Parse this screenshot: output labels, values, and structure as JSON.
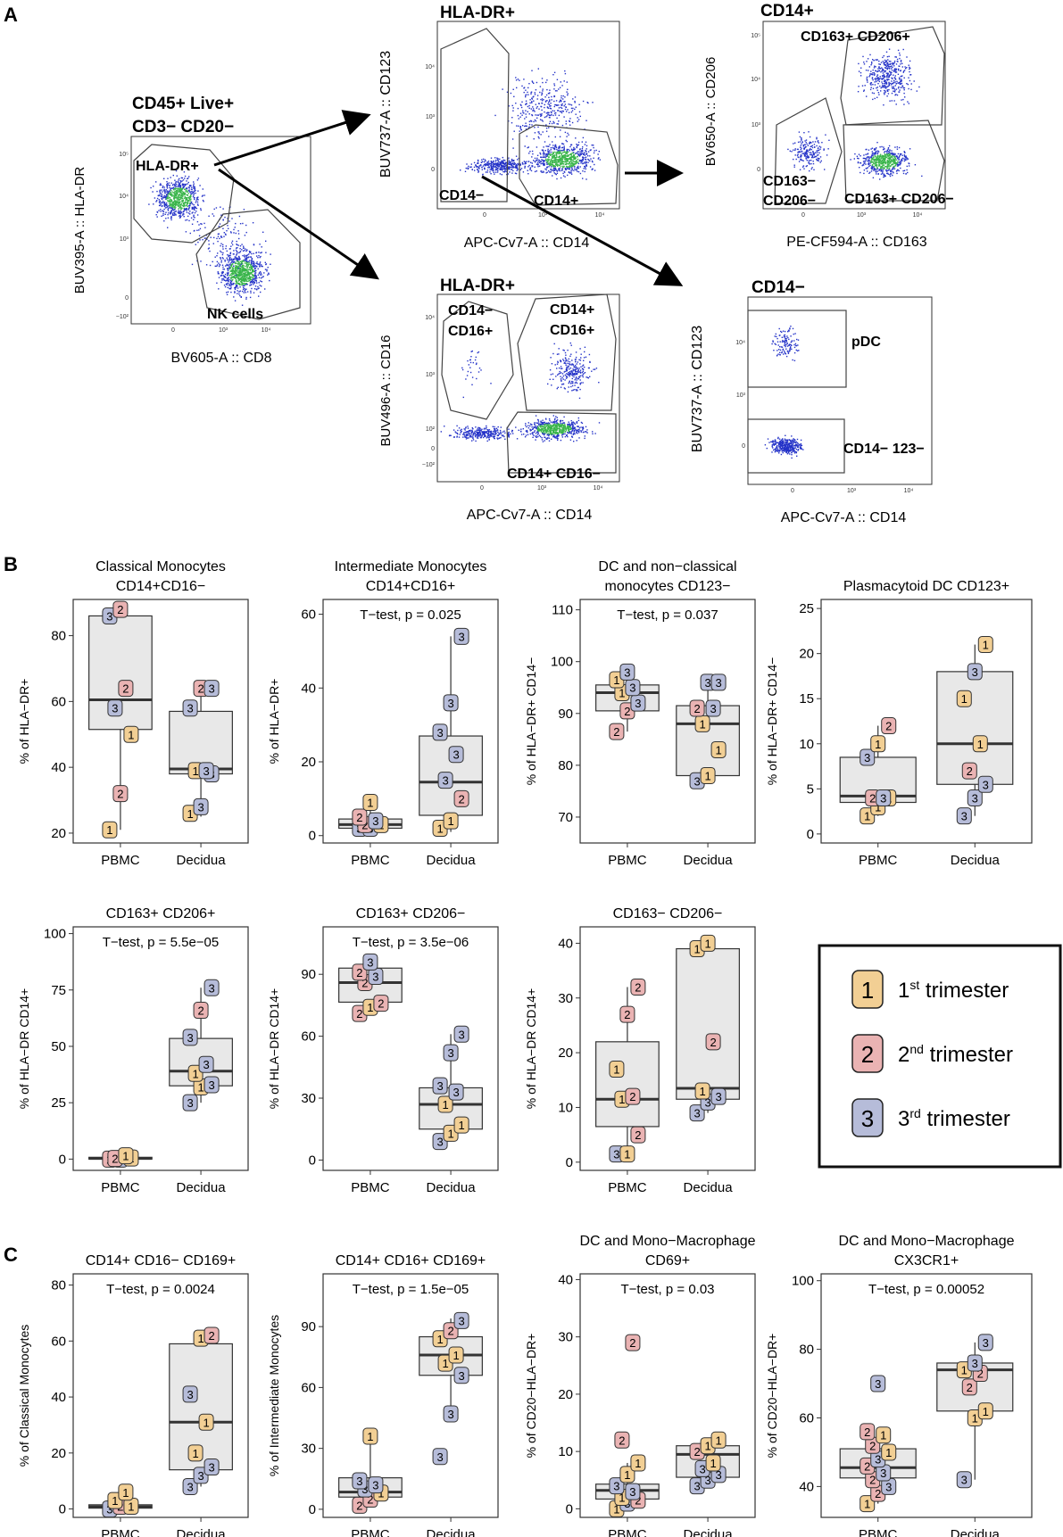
{
  "panel_labels": {
    "a": "A",
    "b": "B",
    "c": "C"
  },
  "flow": {
    "root": {
      "title_line1": "CD45+ Live+",
      "title_line2": "CD3− CD20−",
      "ylabel": "BUV395-A :: HLA-DR",
      "xlabel": "BV605-A :: CD8",
      "gates": [
        "HLA-DR+",
        "NK cells"
      ],
      "yticks": [
        "10⁵",
        "10⁴",
        "10³",
        "0",
        "−10²"
      ],
      "xticks": [
        "0",
        "10³",
        "10⁴"
      ]
    },
    "hladr_top": {
      "title": "HLA-DR+",
      "ylabel": "BUV737-A :: CD123",
      "xlabel": "APC-Cv7-A :: CD14",
      "gates": [
        "CD14−",
        "CD14+"
      ],
      "yticks": [
        "10⁴",
        "10³",
        "0"
      ],
      "xticks": [
        "0",
        "10³",
        "10⁴"
      ]
    },
    "hladr_bottom": {
      "title": "HLA-DR+",
      "ylabel": "BUV496-A :: CD16",
      "xlabel": "APC-Cv7-A :: CD14",
      "gate1_line1": "CD14−",
      "gate1_line2": "CD16+",
      "gate2_line1": "CD14+",
      "gate2_line2": "CD16+",
      "gate3": "CD14+ CD16−",
      "yticks": [
        "10⁴",
        "10³",
        "10²",
        "0",
        "−10²"
      ],
      "xticks": [
        "0",
        "10³",
        "10⁴"
      ]
    },
    "cd14pos": {
      "title": "CD14+",
      "ylabel": "BV650-A :: CD206",
      "xlabel": "PE-CF594-A :: CD163",
      "gate1": "CD163+ CD206+",
      "gate2_line1": "CD163−",
      "gate2_line2": "CD206−",
      "gate3": "CD163+ CD206−",
      "yticks": [
        "10⁵",
        "10⁴",
        "10³",
        "0"
      ],
      "xticks": [
        "0",
        "10³",
        "10⁴"
      ]
    },
    "cd14neg": {
      "title": "CD14−",
      "ylabel": "BUV737-A :: CD123",
      "xlabel": "APC-Cv7-A :: CD14",
      "gate1": "pDC",
      "gate2": "CD14− 123−",
      "yticks": [
        "10⁴",
        "10³",
        "0"
      ],
      "xticks": [
        "0",
        "10³",
        "10⁴"
      ]
    }
  },
  "legend": {
    "items": [
      {
        "num": "1",
        "prefix": "1",
        "sup": "st",
        "suffix": " trimester",
        "color": "#f2cf94"
      },
      {
        "num": "2",
        "prefix": "2",
        "sup": "nd",
        "suffix": " trimester",
        "color": "#eab3b3"
      },
      {
        "num": "3",
        "prefix": "3",
        "sup": "rd",
        "suffix": " trimester",
        "color": "#b6bcd9"
      }
    ]
  },
  "colors": {
    "t1": "#f2cf94",
    "t2": "#eab3b3",
    "t3": "#b6bcd9",
    "box": "#e8e8e8",
    "dots_low": "#2533c8",
    "dots_high": "#39b54a"
  },
  "chart_data": [
    {
      "type": "box",
      "panel": "B",
      "title": [
        "Classical Monocytes",
        "CD14+CD16−"
      ],
      "ylabel": "% of HLA−DR+",
      "categories": [
        "PBMC",
        "Decidua"
      ],
      "ylim": [
        17,
        91
      ],
      "yticks": [
        20,
        40,
        60,
        80
      ],
      "pvalue": "",
      "boxes": [
        {
          "q1": 51.5,
          "median": 60.5,
          "q3": 86,
          "lo": 21,
          "hi": 88
        },
        {
          "q1": 38,
          "median": 39.5,
          "q3": 57,
          "lo": 25,
          "hi": 64
        }
      ],
      "points": [
        [
          [
            1,
            21
          ],
          [
            2,
            32
          ],
          [
            1,
            50
          ],
          [
            3,
            58
          ],
          [
            2,
            64
          ],
          [
            3,
            86
          ],
          [
            2,
            88
          ]
        ],
        [
          [
            1,
            26
          ],
          [
            3,
            28
          ],
          [
            3,
            38
          ],
          [
            1,
            39
          ],
          [
            3,
            39
          ],
          [
            3,
            58
          ],
          [
            2,
            64
          ],
          [
            3,
            64
          ]
        ]
      ]
    },
    {
      "type": "box",
      "panel": "B",
      "title": [
        "Intermediate Monocytes",
        "CD14+CD16+"
      ],
      "ylabel": "% of HLA−DR+",
      "categories": [
        "PBMC",
        "Decidua"
      ],
      "ylim": [
        -2,
        64
      ],
      "yticks": [
        0,
        20,
        40,
        60
      ],
      "pvalue": "T−test, p = 0.025",
      "boxes": [
        {
          "q1": 2,
          "median": 3,
          "q3": 4.5,
          "lo": 1,
          "hi": 9
        },
        {
          "q1": 5.5,
          "median": 14.5,
          "q3": 27,
          "lo": 1,
          "hi": 54
        }
      ],
      "points": [
        [
          [
            3,
            2
          ],
          [
            3,
            2
          ],
          [
            1,
            3
          ],
          [
            2,
            3
          ],
          [
            3,
            4
          ],
          [
            2,
            5
          ],
          [
            1,
            9
          ]
        ],
        [
          [
            1,
            2
          ],
          [
            1,
            4
          ],
          [
            2,
            10
          ],
          [
            3,
            15
          ],
          [
            3,
            22
          ],
          [
            3,
            28
          ],
          [
            3,
            36
          ],
          [
            3,
            54
          ]
        ]
      ]
    },
    {
      "type": "box",
      "panel": "B",
      "title": [
        "DC and non−classical",
        "monocytes CD123−"
      ],
      "ylabel": "% of HLA−DR+ CD14−",
      "categories": [
        "PBMC",
        "Decidua"
      ],
      "ylim": [
        65,
        112
      ],
      "yticks": [
        70,
        80,
        90,
        100,
        110
      ],
      "pvalue": "T−test, p = 0.037",
      "boxes": [
        {
          "q1": 90.5,
          "median": 94,
          "q3": 95.5,
          "lo": 86.5,
          "hi": 98
        },
        {
          "q1": 78,
          "median": 88,
          "q3": 91.5,
          "lo": 77,
          "hi": 96
        }
      ],
      "points": [
        [
          [
            2,
            86.5
          ],
          [
            2,
            90.5
          ],
          [
            3,
            92
          ],
          [
            1,
            94
          ],
          [
            3,
            95
          ],
          [
            1,
            96.5
          ],
          [
            3,
            98
          ]
        ],
        [
          [
            3,
            77
          ],
          [
            1,
            78
          ],
          [
            1,
            83
          ],
          [
            1,
            88
          ],
          [
            3,
            91
          ],
          [
            2,
            91
          ],
          [
            3,
            96
          ],
          [
            3,
            96
          ]
        ]
      ]
    },
    {
      "type": "box",
      "panel": "B",
      "title": [
        "Plasmacytoid DC CD123+"
      ],
      "ylabel": "% of HLA−DR+ CD14−",
      "categories": [
        "PBMC",
        "Decidua"
      ],
      "ylim": [
        -1,
        26
      ],
      "yticks": [
        0,
        5,
        10,
        15,
        20,
        25
      ],
      "pvalue": "",
      "boxes": [
        {
          "q1": 3.5,
          "median": 4.2,
          "q3": 8.5,
          "lo": 2,
          "hi": 12
        },
        {
          "q1": 5.5,
          "median": 10,
          "q3": 18,
          "lo": 2,
          "hi": 21
        }
      ],
      "points": [
        [
          [
            1,
            2
          ],
          [
            1,
            3
          ],
          [
            1,
            4
          ],
          [
            2,
            4
          ],
          [
            3,
            4
          ],
          [
            3,
            8.5
          ],
          [
            1,
            10
          ],
          [
            2,
            12
          ]
        ],
        [
          [
            3,
            2
          ],
          [
            3,
            4
          ],
          [
            3,
            5.5
          ],
          [
            2,
            7
          ],
          [
            1,
            10
          ],
          [
            1,
            15
          ],
          [
            3,
            18
          ],
          [
            1,
            21
          ]
        ]
      ]
    },
    {
      "type": "box",
      "panel": "B",
      "title": [
        "CD163+ CD206+"
      ],
      "ylabel": "% of HLA−DR CD14+",
      "categories": [
        "PBMC",
        "Decidua"
      ],
      "ylim": [
        -5,
        103
      ],
      "yticks": [
        0,
        25,
        50,
        75,
        100
      ],
      "pvalue": "T−test, p = 5.5e−05",
      "boxes": [
        {
          "q1": 0,
          "median": 0.3,
          "q3": 0.8,
          "lo": 0,
          "hi": 1.5
        },
        {
          "q1": 32.5,
          "median": 39,
          "q3": 53.5,
          "lo": 25,
          "hi": 76
        }
      ],
      "points": [
        [
          [
            2,
            0
          ],
          [
            3,
            0
          ],
          [
            1,
            0.5
          ],
          [
            2,
            0.3
          ],
          [
            1,
            1.5
          ]
        ],
        [
          [
            3,
            25
          ],
          [
            1,
            32
          ],
          [
            3,
            33
          ],
          [
            1,
            38
          ],
          [
            3,
            42
          ],
          [
            3,
            54
          ],
          [
            2,
            66
          ],
          [
            3,
            76
          ]
        ]
      ]
    },
    {
      "type": "box",
      "panel": "B",
      "title": [
        "CD163+ CD206−"
      ],
      "ylabel": "% of HLA−DR CD14+",
      "categories": [
        "PBMC",
        "Decidua"
      ],
      "ylim": [
        -5,
        113
      ],
      "yticks": [
        0,
        30,
        60,
        90
      ],
      "pvalue": "T−test, p = 3.5e−06",
      "boxes": [
        {
          "q1": 76.5,
          "median": 86,
          "q3": 93,
          "lo": 71,
          "hi": 97
        },
        {
          "q1": 15,
          "median": 27,
          "q3": 35,
          "lo": 9,
          "hi": 61
        }
      ],
      "points": [
        [
          [
            2,
            71
          ],
          [
            1,
            74
          ],
          [
            2,
            76
          ],
          [
            2,
            86
          ],
          [
            3,
            89
          ],
          [
            2,
            91
          ],
          [
            3,
            96
          ]
        ],
        [
          [
            3,
            9
          ],
          [
            1,
            13
          ],
          [
            1,
            17
          ],
          [
            1,
            27
          ],
          [
            3,
            33
          ],
          [
            3,
            36
          ],
          [
            3,
            52
          ],
          [
            3,
            61
          ]
        ]
      ]
    },
    {
      "type": "box",
      "panel": "B",
      "title": [
        "CD163− CD206−"
      ],
      "ylabel": "% of HLA−DR CD14+",
      "categories": [
        "PBMC",
        "Decidua"
      ],
      "ylim": [
        -1.5,
        43
      ],
      "yticks": [
        0,
        10,
        20,
        30,
        40
      ],
      "pvalue": "",
      "boxes": [
        {
          "q1": 6.5,
          "median": 11.5,
          "q3": 22,
          "lo": 1.5,
          "hi": 32
        },
        {
          "q1": 11.5,
          "median": 13.5,
          "q3": 39,
          "lo": 9,
          "hi": 40
        }
      ],
      "points": [
        [
          [
            3,
            1.5
          ],
          [
            1,
            1.5
          ],
          [
            2,
            5
          ],
          [
            1,
            11.5
          ],
          [
            2,
            12
          ],
          [
            1,
            17
          ],
          [
            2,
            27
          ],
          [
            2,
            32
          ]
        ],
        [
          [
            3,
            9
          ],
          [
            3,
            11
          ],
          [
            3,
            12
          ],
          [
            1,
            13
          ],
          [
            2,
            22
          ],
          [
            1,
            39
          ],
          [
            1,
            40
          ]
        ]
      ]
    },
    {
      "type": "box",
      "panel": "C",
      "title": [
        "CD14+ CD16− CD169+"
      ],
      "ylabel": "% of Classical Monocytes",
      "categories": [
        "PBMC",
        "Decidua"
      ],
      "ylim": [
        -3,
        84
      ],
      "yticks": [
        0,
        20,
        40,
        60,
        80
      ],
      "pvalue": "T−test, p = 0.0024",
      "boxes": [
        {
          "q1": 0.3,
          "median": 0.8,
          "q3": 1.5,
          "lo": 0,
          "hi": 6
        },
        {
          "q1": 14,
          "median": 31,
          "q3": 59,
          "lo": 8,
          "hi": 63
        }
      ],
      "points": [
        [
          [
            3,
            0
          ],
          [
            2,
            1
          ],
          [
            1,
            1
          ],
          [
            1,
            3
          ],
          [
            1,
            6
          ]
        ],
        [
          [
            3,
            8
          ],
          [
            3,
            12
          ],
          [
            3,
            15
          ],
          [
            1,
            20
          ],
          [
            1,
            31
          ],
          [
            3,
            41
          ],
          [
            1,
            61
          ],
          [
            2,
            62
          ]
        ]
      ]
    },
    {
      "type": "box",
      "panel": "C",
      "title": [
        "CD14+ CD16+ CD169+"
      ],
      "ylabel": "% of Intermediate Monocytes",
      "categories": [
        "PBMC",
        "Decidua"
      ],
      "ylim": [
        -4,
        116
      ],
      "yticks": [
        0,
        30,
        60,
        90
      ],
      "pvalue": "T−test, p = 1.5e−05",
      "boxes": [
        {
          "q1": 6,
          "median": 8.5,
          "q3": 15.5,
          "lo": 2,
          "hi": 36
        },
        {
          "q1": 66,
          "median": 76,
          "q3": 85,
          "lo": 46,
          "hi": 94
        }
      ],
      "points": [
        [
          [
            2,
            2
          ],
          [
            2,
            5
          ],
          [
            1,
            8
          ],
          [
            3,
            10
          ],
          [
            3,
            12
          ],
          [
            3,
            14
          ],
          [
            1,
            36
          ]
        ],
        [
          [
            3,
            26
          ],
          [
            3,
            47
          ],
          [
            3,
            66
          ],
          [
            1,
            72
          ],
          [
            1,
            76
          ],
          [
            1,
            84
          ],
          [
            2,
            88
          ],
          [
            3,
            93
          ]
        ]
      ]
    },
    {
      "type": "box",
      "panel": "C",
      "title": [
        "DC and Mono−Macrophage",
        "CD69+"
      ],
      "ylabel": "% of CD20−HLA−DR+",
      "categories": [
        "PBMC",
        "Decidua"
      ],
      "ylim": [
        -1.5,
        41
      ],
      "yticks": [
        0,
        10,
        20,
        30,
        40
      ],
      "pvalue": "T−test, p = 0.03",
      "boxes": [
        {
          "q1": 1.7,
          "median": 3.2,
          "q3": 4.3,
          "lo": 0,
          "hi": 8
        },
        {
          "q1": 5.5,
          "median": 9.5,
          "q3": 11,
          "lo": 4,
          "hi": 12
        }
      ],
      "points": [
        [
          [
            1,
            0
          ],
          [
            3,
            1
          ],
          [
            2,
            1.5
          ],
          [
            1,
            2
          ],
          [
            3,
            3
          ],
          [
            3,
            4
          ],
          [
            1,
            6
          ],
          [
            1,
            8
          ],
          [
            2,
            12
          ],
          [
            2,
            29
          ]
        ],
        [
          [
            3,
            4
          ],
          [
            3,
            5
          ],
          [
            3,
            6
          ],
          [
            3,
            7
          ],
          [
            1,
            8
          ],
          [
            2,
            10
          ],
          [
            1,
            11
          ],
          [
            1,
            12
          ]
        ]
      ]
    },
    {
      "type": "box",
      "panel": "C",
      "title": [
        "DC and Mono−Macrophage",
        "CX3CR1+"
      ],
      "ylabel": "% of CD20−HLA−DR+",
      "categories": [
        "PBMC",
        "Decidua"
      ],
      "ylim": [
        31,
        102
      ],
      "yticks": [
        40,
        60,
        80,
        100
      ],
      "pvalue": "T−test, p = 0.00052",
      "boxes": [
        {
          "q1": 42.5,
          "median": 45.5,
          "q3": 51,
          "lo": 35,
          "hi": 56
        },
        {
          "q1": 62,
          "median": 74,
          "q3": 76,
          "lo": 42,
          "hi": 82
        }
      ],
      "points": [
        [
          [
            1,
            35
          ],
          [
            2,
            38
          ],
          [
            3,
            40
          ],
          [
            2,
            42
          ],
          [
            3,
            44
          ],
          [
            2,
            46
          ],
          [
            3,
            48
          ],
          [
            1,
            50
          ],
          [
            2,
            52
          ],
          [
            1,
            55
          ],
          [
            2,
            56
          ],
          [
            3,
            70
          ]
        ],
        [
          [
            3,
            42
          ],
          [
            1,
            60
          ],
          [
            1,
            62
          ],
          [
            2,
            69
          ],
          [
            2,
            73
          ],
          [
            1,
            74
          ],
          [
            3,
            76
          ],
          [
            3,
            82
          ]
        ]
      ]
    }
  ]
}
